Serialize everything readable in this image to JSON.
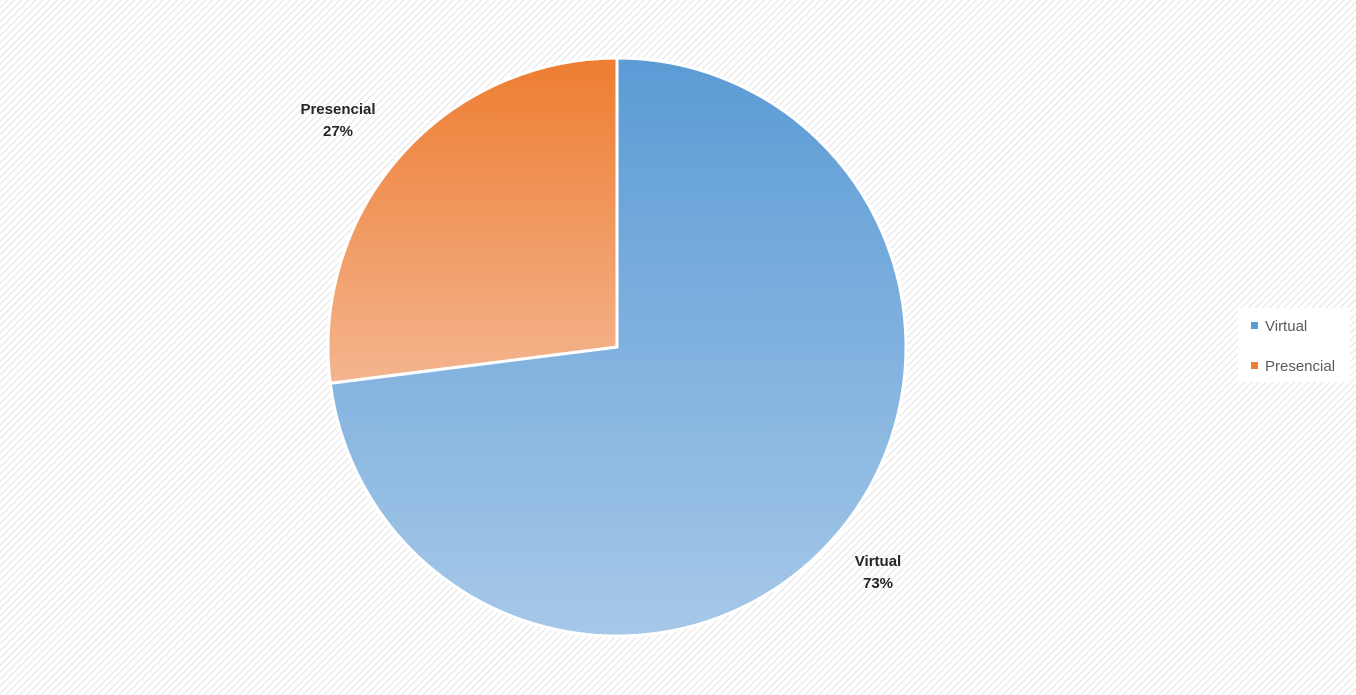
{
  "colors": {
    "Virtual": {
      "top": "#5b9bd5",
      "bottom": "#a6c8e8"
    },
    "Presencial": {
      "top": "#ed7d31",
      "bottom": "#f4b48e"
    }
  },
  "chart_data": {
    "type": "pie",
    "title": "",
    "categories": [
      "Virtual",
      "Presencial"
    ],
    "values": [
      73,
      27
    ],
    "data_labels": [
      {
        "name": "Virtual",
        "percent": "73%"
      },
      {
        "name": "Presencial",
        "percent": "27%"
      }
    ],
    "legend": {
      "placement": "right",
      "items": [
        "Virtual",
        "Presencial"
      ]
    }
  }
}
